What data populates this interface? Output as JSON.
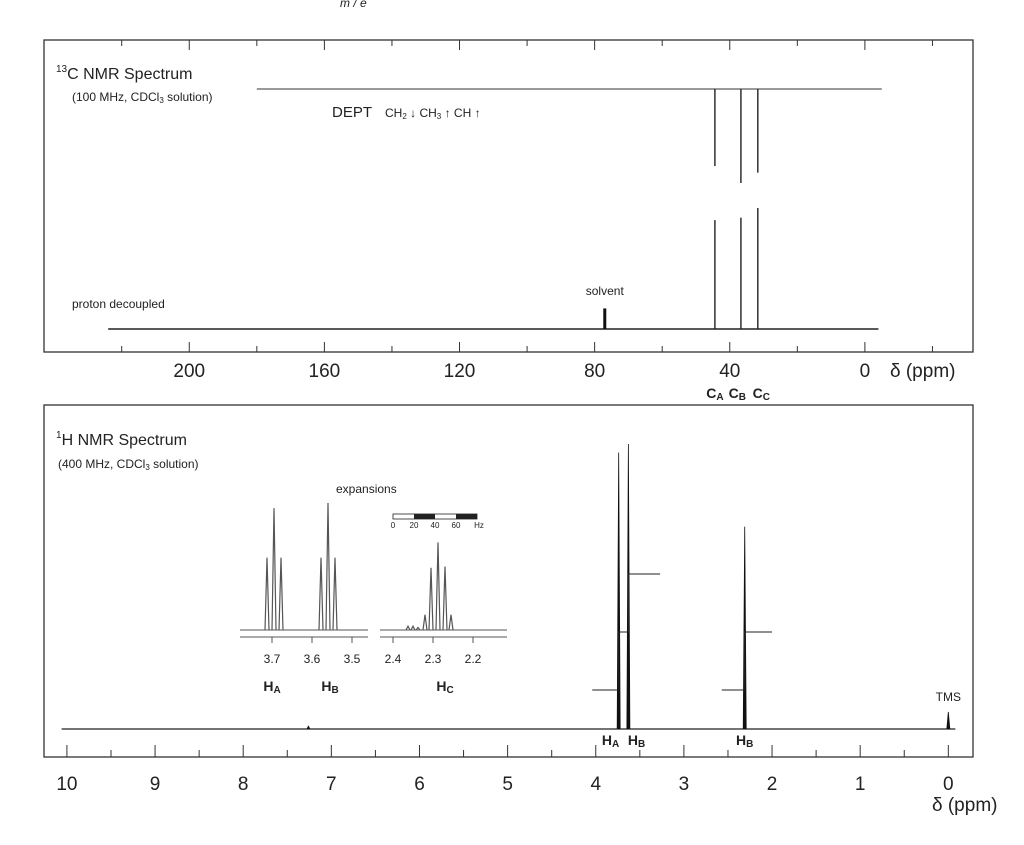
{
  "chart_data": [
    {
      "type": "spectrum",
      "top_label": "m / e",
      "title_sup": "13",
      "title": "C NMR Spectrum",
      "subtitle": [
        "(100 MHz, CDCl",
        "3",
        " solution)"
      ],
      "dept_label": "DEPT",
      "dept_legend": [
        "CH",
        "2",
        " ↓ CH",
        "3",
        " ↑ CH ↑"
      ],
      "decoupled_label": "proton decoupled",
      "solvent_label": "solvent",
      "xlabel": "δ (ppm)",
      "xlim": [
        243,
        -32
      ],
      "xticks": [
        200,
        160,
        120,
        80,
        40,
        0
      ],
      "xminor": [
        220,
        180,
        140,
        100,
        60,
        20,
        -20
      ],
      "ylim": [
        0,
        100
      ],
      "dept_range": [
        180,
        -5
      ],
      "decoupled_range": [
        224,
        -4
      ],
      "solvent": {
        "ppm": 77,
        "value": 17
      },
      "peaks": [
        {
          "ppm": 44.4,
          "decoupled": 90,
          "dept": -82,
          "label": "C",
          "sub": "A"
        },
        {
          "ppm": 36.7,
          "decoupled": 92,
          "dept": -100,
          "label": "C",
          "sub": "B"
        },
        {
          "ppm": 31.7,
          "decoupled": 100,
          "dept": -89,
          "label": "C",
          "sub": "C"
        }
      ]
    },
    {
      "type": "spectrum",
      "title_sup": "1",
      "title": "H NMR Spectrum",
      "subtitle": [
        "(400 MHz, CDCl",
        "3",
        " solution)"
      ],
      "xlabel": "δ (ppm)",
      "xlim": [
        10.26,
        -0.28
      ],
      "xticks": [
        10,
        9,
        8,
        7,
        6,
        5,
        4,
        3,
        2,
        1,
        0
      ],
      "xminor": [
        9.5,
        8.5,
        7.5,
        6.5,
        5.5,
        4.5,
        3.5,
        2.5,
        1.5,
        0.5
      ],
      "ylim": [
        0,
        100
      ],
      "baseline_range": [
        10.06,
        -0.08
      ],
      "peaks": [
        {
          "ppm": 7.26,
          "value": 1
        },
        {
          "ppm": 3.74,
          "value": 97,
          "label": "H",
          "sub": "A"
        },
        {
          "ppm": 3.63,
          "value": 100,
          "label": "H",
          "sub": "B"
        },
        {
          "ppm": 2.31,
          "value": 71,
          "label": "H",
          "sub": "B"
        },
        {
          "ppm": 0,
          "value": 6,
          "label_above": "TMS"
        }
      ],
      "integrals": [
        {
          "x": [
            4.04,
            3.74,
            3.63,
            3.27
          ],
          "values": [
            0,
            2,
            4,
            4
          ]
        },
        {
          "x": [
            2.57,
            2.31,
            2.0
          ],
          "values": [
            0,
            2,
            2
          ]
        }
      ],
      "expansions_label": "expansions",
      "scale_bar": {
        "xlim": [
          0,
          80
        ],
        "ticks": [
          0,
          20,
          40,
          60
        ],
        "unit": "Hz"
      },
      "expansions": [
        {
          "xlim": [
            3.78,
            3.46
          ],
          "xticks": [
            3.7,
            3.6,
            3.5
          ],
          "x": [
            3.7125,
            3.695,
            3.6775,
            3.5775,
            3.56,
            3.5425
          ],
          "values": [
            57,
            96,
            57,
            57,
            100,
            57
          ],
          "labels": [
            {
              "x": 3.7,
              "text": "H",
              "sub": "A"
            },
            {
              "x": 3.555,
              "text": "H",
              "sub": "B"
            }
          ]
        },
        {
          "xlim": [
            2.4325,
            2.115
          ],
          "xticks": [
            2.4,
            2.3,
            2.2
          ],
          "x": [
            2.3625,
            2.35,
            2.3375,
            2.32,
            2.305,
            2.2875,
            2.27,
            2.255
          ],
          "values": [
            3,
            3,
            2,
            12,
            49,
            69,
            50,
            12
          ],
          "labels": [
            {
              "x": 2.27,
              "text": "H",
              "sub": "C"
            }
          ]
        }
      ]
    }
  ]
}
